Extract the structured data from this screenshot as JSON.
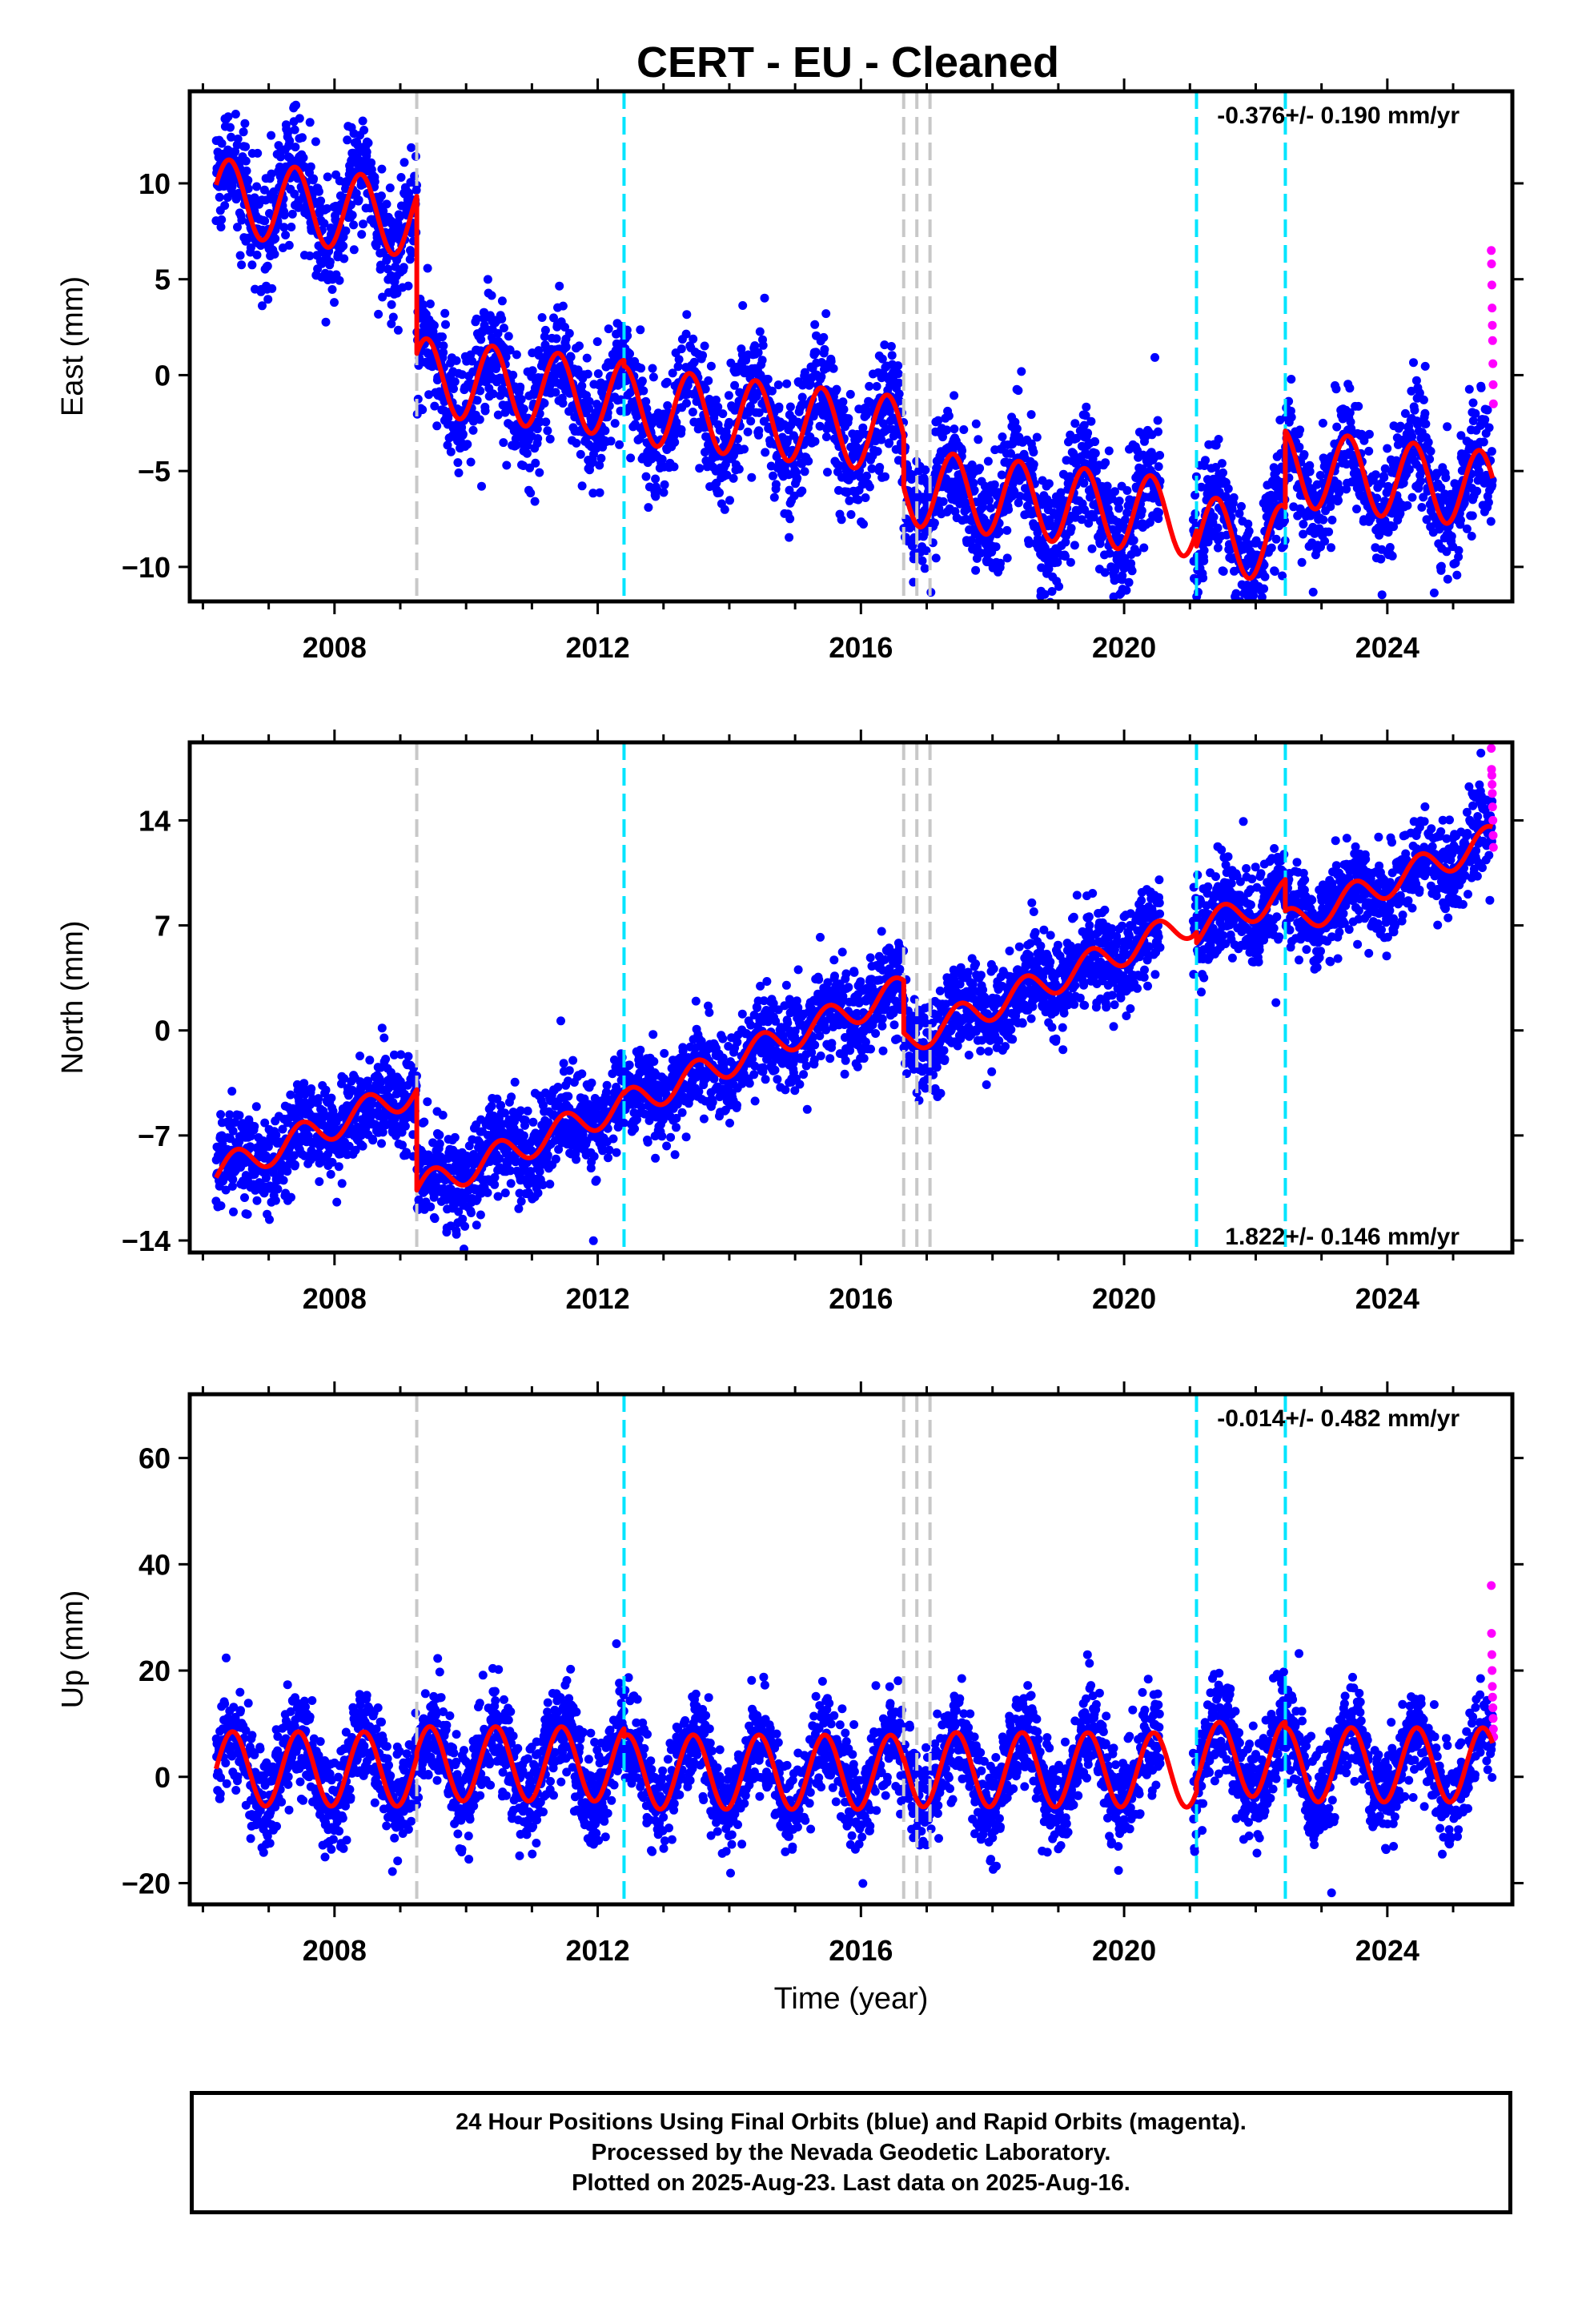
{
  "title": "CERT  - EU - Cleaned",
  "footer": {
    "line1": "24 Hour Positions Using Final Orbits (blue) and Rapid Orbits (magenta).",
    "line2": "Processed by the Nevada Geodetic Laboratory.",
    "line3": "Plotted on 2025-Aug-23. Last data on 2025-Aug-16."
  },
  "colors": {
    "final_orbits": "#0000ff",
    "rapid_orbits": "#ff00ff",
    "model_fit": "#ff0000",
    "equipment_change": "#c8c8c8",
    "earthquake": "#00e5ff"
  },
  "chart_data": [
    {
      "type": "scatter",
      "ylabel": "East (mm)",
      "xlim": [
        2005.8,
        2025.9
      ],
      "ylim": [
        -11.8,
        14.8
      ],
      "xticks": [
        2008,
        2012,
        2016,
        2020,
        2024
      ],
      "yticks": [
        -10,
        -5,
        0,
        5,
        10
      ],
      "rate_label": "-0.376+/- 0.190 mm/yr",
      "rate_position": "top-right",
      "grid": false,
      "offset_lines": {
        "equipment": [
          2009.25,
          2016.65,
          2016.85,
          2017.05
        ],
        "earthquake": [
          2012.4,
          2021.1,
          2022.45
        ]
      },
      "fit_model": {
        "segments": [
          {
            "start": 2006.2,
            "end": 2009.25,
            "base": 9.3,
            "slope": -0.376
          },
          {
            "start": 2009.25,
            "end": 2012.4,
            "base": 1.1,
            "slope": -0.376
          },
          {
            "start": 2012.4,
            "end": 2016.65,
            "base": 0.8,
            "slope": -0.376
          },
          {
            "start": 2016.65,
            "end": 2021.1,
            "base": -1.9,
            "slope": -0.376
          },
          {
            "start": 2021.1,
            "end": 2022.45,
            "base": -2.7,
            "slope": -0.376
          },
          {
            "start": 2022.45,
            "end": 2025.6,
            "base": 1.3,
            "slope": -0.376
          }
        ],
        "reference_year": 2006.2,
        "annual_amplitude": 2.0,
        "annual_phase_year": 2006.4
      },
      "scatter_noise_mm": 1.5,
      "rapid_values": [
        6.5,
        5.8,
        4.7,
        3.5,
        2.6,
        1.8,
        0.6,
        -0.5,
        -1.5
      ]
    },
    {
      "type": "scatter",
      "ylabel": "North (mm)",
      "xlim": [
        2005.8,
        2025.9
      ],
      "ylim": [
        -14.8,
        19.2
      ],
      "xticks": [
        2008,
        2012,
        2016,
        2020,
        2024
      ],
      "yticks": [
        -14,
        -7,
        0,
        7,
        14
      ],
      "rate_label": "1.822+/- 0.146 mm/yr",
      "rate_position": "bottom-right",
      "grid": false,
      "offset_lines": {
        "equipment": [
          2009.25,
          2016.65,
          2016.85,
          2017.05
        ],
        "earthquake": [
          2012.4,
          2021.1,
          2022.45
        ]
      },
      "fit_model": {
        "segments": [
          {
            "start": 2006.2,
            "end": 2009.25,
            "base": -9.5,
            "slope": 1.822
          },
          {
            "start": 2009.25,
            "end": 2012.4,
            "base": -16.2,
            "slope": 1.822
          },
          {
            "start": 2012.4,
            "end": 2016.65,
            "base": -16.3,
            "slope": 1.822
          },
          {
            "start": 2016.65,
            "end": 2021.1,
            "base": -19.8,
            "slope": 1.822
          },
          {
            "start": 2021.1,
            "end": 2022.45,
            "base": -20.5,
            "slope": 1.822
          },
          {
            "start": 2022.45,
            "end": 2025.6,
            "base": -22.6,
            "slope": 1.822
          }
        ],
        "reference_year": 2006.2,
        "annual_amplitude": 1.0,
        "annual_phase_year": 2006.5
      },
      "scatter_noise_mm": 1.5,
      "rapid_values": [
        18.8,
        17.4,
        17.0,
        16.4,
        15.8,
        14.9,
        14.0,
        13.0,
        12.2
      ]
    },
    {
      "type": "scatter",
      "ylabel": "Up (mm)",
      "xlabel": "Time (year)",
      "xlim": [
        2005.8,
        2025.9
      ],
      "ylim": [
        -24,
        72
      ],
      "xticks": [
        2008,
        2012,
        2016,
        2020,
        2024
      ],
      "yticks": [
        -20,
        0,
        20,
        40,
        60
      ],
      "rate_label": "-0.014+/- 0.482 mm/yr",
      "rate_position": "top-right",
      "grid": false,
      "offset_lines": {
        "equipment": [
          2009.25,
          2016.65,
          2016.85,
          2017.05
        ],
        "earthquake": [
          2012.4,
          2021.1,
          2022.45
        ]
      },
      "fit_model": {
        "segments": [
          {
            "start": 2006.2,
            "end": 2009.25,
            "base": 1.5,
            "slope": -0.014
          },
          {
            "start": 2009.25,
            "end": 2012.4,
            "base": 2.5,
            "slope": -0.014
          },
          {
            "start": 2012.4,
            "end": 2016.65,
            "base": 1.0,
            "slope": -0.014
          },
          {
            "start": 2016.65,
            "end": 2021.1,
            "base": 1.5,
            "slope": -0.014
          },
          {
            "start": 2021.1,
            "end": 2022.45,
            "base": 3.5,
            "slope": -0.014
          },
          {
            "start": 2022.45,
            "end": 2025.6,
            "base": 2.5,
            "slope": -0.014
          }
        ],
        "reference_year": 2006.2,
        "annual_amplitude": 7.0,
        "annual_phase_year": 2006.45
      },
      "scatter_noise_mm": 4.5,
      "rapid_values": [
        36,
        27,
        23,
        20,
        17,
        15,
        13,
        11,
        9,
        7.5
      ]
    }
  ]
}
